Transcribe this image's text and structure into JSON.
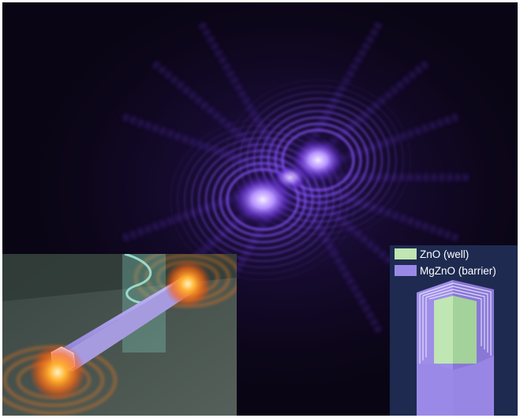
{
  "colors": {
    "background": "#0a0514",
    "interference_glow": "#8a55ff",
    "interference_core": "#f4ecff",
    "emission_glow": "#ff8a1a",
    "nanowire": "#a79be0",
    "well_color": "#bfe6b3",
    "barrier_color": "#9a88e6",
    "inset_right_bg": "#1e2a50",
    "inset_left_bg": "#3d4a47"
  },
  "legend": {
    "well": {
      "label": "ZnO (well)"
    },
    "barrier": {
      "label": "MgZnO (barrier)"
    }
  },
  "icons": {
    "left_inset": "nanowire-laser-illustration",
    "right_inset": "core-shell-nanowire-crosssection"
  }
}
